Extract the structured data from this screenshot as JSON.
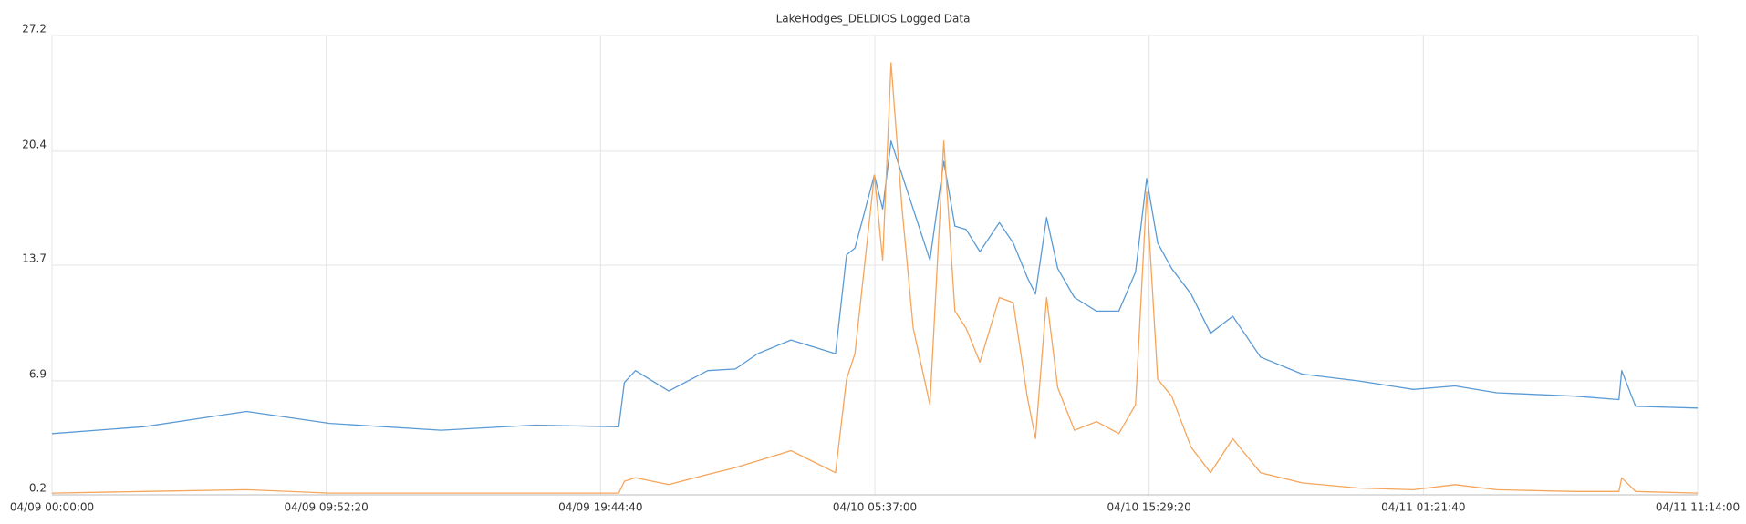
{
  "chart_data": {
    "type": "line",
    "title": "LakeHodges_DELDIOS Logged Data",
    "x": [
      "04/09 00:00:00",
      "04/09 03:18:00",
      "04/09 07:00:00",
      "04/09 10:00:00",
      "04/09 14:00:00",
      "04/09 17:24:00",
      "04/09 20:24:00",
      "04/09 20:36:00",
      "04/09 21:00:00",
      "04/09 22:12:00",
      "04/09 23:36:00",
      "04/10 00:36:00",
      "04/10 01:24:00",
      "04/10 02:36:00",
      "04/10 04:12:00",
      "04/10 04:36:00",
      "04/10 04:54:00",
      "04/10 05:36:00",
      "04/10 05:54:00",
      "04/10 06:12:00",
      "04/10 06:36:00",
      "04/10 07:00:00",
      "04/10 07:36:00",
      "04/10 08:06:00",
      "04/10 08:30:00",
      "04/10 08:54:00",
      "04/10 09:24:00",
      "04/10 10:06:00",
      "04/10 10:36:00",
      "04/10 11:06:00",
      "04/10 11:24:00",
      "04/10 11:48:00",
      "04/10 12:12:00",
      "04/10 12:48:00",
      "04/10 13:36:00",
      "04/10 14:24:00",
      "04/10 15:00:00",
      "04/10 15:24:00",
      "04/10 15:48:00",
      "04/10 16:18:00",
      "04/10 17:00:00",
      "04/10 17:42:00",
      "04/10 18:30:00",
      "04/10 19:30:00",
      "04/10 21:00:00",
      "04/10 23:00:00",
      "04/11 01:00:00",
      "04/11 02:30:00",
      "04/11 04:00:00",
      "04/11 06:48:00",
      "04/11 08:24:00",
      "04/11 08:30:00",
      "04/11 09:00:00",
      "04/11 11:14:00"
    ],
    "series": [
      {
        "color": "#5b9bd5",
        "values": [
          3.8,
          4.2,
          5.1,
          4.4,
          4.0,
          4.3,
          4.2,
          6.8,
          7.5,
          6.3,
          7.5,
          7.6,
          8.5,
          9.3,
          8.5,
          14.3,
          14.7,
          19,
          17,
          21,
          19,
          17,
          14,
          19.8,
          16,
          15.8,
          14.5,
          16.2,
          15,
          13,
          12,
          16.5,
          13.5,
          11.8,
          11,
          11,
          13.3,
          18.8,
          15,
          13.5,
          12,
          9.7,
          10.7,
          8.3,
          7.3,
          6.9,
          6.4,
          6.6,
          6.2,
          6.0,
          5.8,
          7.5,
          5.4,
          5.3
        ]
      },
      {
        "color": "#f5a55c",
        "values": [
          0.3,
          0.4,
          0.5,
          0.3,
          0.3,
          0.3,
          0.3,
          1.0,
          1.2,
          0.8,
          1.4,
          1.8,
          2.2,
          2.8,
          1.5,
          7,
          8.5,
          19,
          14,
          25.6,
          17,
          10,
          5.5,
          21,
          11,
          10,
          8,
          11.8,
          11.5,
          6,
          3.5,
          11.8,
          6.5,
          4,
          4.5,
          3.8,
          5.5,
          18,
          7,
          6,
          3,
          1.5,
          3.5,
          1.5,
          0.9,
          0.6,
          0.5,
          0.8,
          0.5,
          0.4,
          0.4,
          1.2,
          0.4,
          0.3
        ]
      }
    ],
    "xlim": [
      "04/09 00:00:00",
      "04/11 11:14:00"
    ],
    "xticks": [
      "04/09 00:00:00",
      "04/09 09:52:20",
      "04/09 19:44:40",
      "04/10 05:37:00",
      "04/10 15:29:20",
      "04/11 01:21:40",
      "04/11 11:14:00"
    ],
    "ylim": [
      0.2,
      27.2
    ],
    "yticks": [
      0.2,
      6.9,
      13.7,
      20.4,
      27.2
    ],
    "grid": true
  }
}
